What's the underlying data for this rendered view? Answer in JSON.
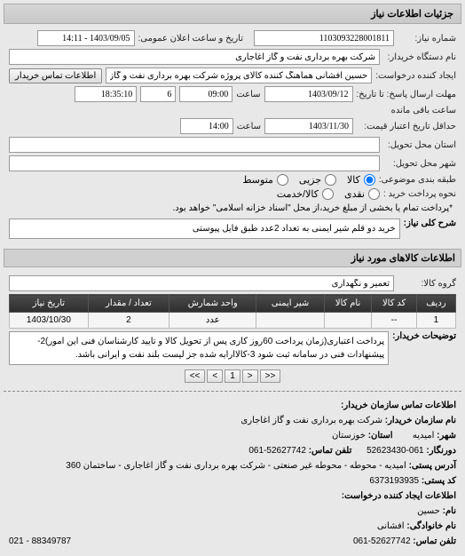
{
  "headers": {
    "main": "جزئیات اطلاعات نیاز",
    "goods": "اطلاعات کالاهای مورد نیاز",
    "contact": "اطلاعات تماس سازمان خریدار:"
  },
  "labels": {
    "req_no": "شماره نیاز:",
    "announce": "تاریخ و ساعت اعلان عمومی:",
    "buyer_org": "نام دستگاه خریدار:",
    "requester": "ایجاد کننده درخواست:",
    "btn_contact": "اطلاعات تماس خریدار",
    "until": "تا تاریخ:",
    "deadline": "مهلت ارسال پاسخ: تا تاریخ:",
    "credit": "حداقل تاریخ اعتبار قیمت:",
    "province": "استان محل تحویل:",
    "city": "شهر محل تحویل:",
    "packaging": "طبقه بندی موضوعی:",
    "payment": "نحوه پرداخت خرید :",
    "desc_main": "شرح کلی نیاز:",
    "goods_group": "گروه کالا:",
    "notes": "توضیحات خریدار:",
    "saat": "ساعت",
    "remain": "ساعت باقی مانده",
    "pay_cash": "نقدی",
    "pay_check": "کالا/خدمت",
    "b_org": "نام سازمان خریدار:",
    "b_city": "شهر:",
    "b_tel": "دورنگار:",
    "b_phone": "تلفن تماس:",
    "b_addr": "آدرس پستی:",
    "b_post": "کد پستی:",
    "b_req": "اطلاعات ایجاد کننده درخواست:",
    "b_name": "نام:",
    "b_family": "نام خانوادگی:",
    "b_tel2": "تلفن تماس:",
    "pkg_opt1": "کالا",
    "pkg_opt2": "جزیی",
    "pkg_opt3": "متوسط"
  },
  "values": {
    "req_no": "1103093228001811",
    "announce": "1403/09/05 - 14:11",
    "buyer_org": "شرکت بهره برداری نفت و گاز اغاجاری",
    "requester": "حسین افشانی هماهنگ کننده کالای پروژه شرکت بهره برداری نفت و گاز اغاجا",
    "deadline_date": "1403/09/12",
    "deadline_time": "09:00",
    "deadline_day": "6",
    "remain": "18:35:10",
    "credit_date": "1403/11/30",
    "credit_time": "14:00",
    "payment_note": "*پرداخت تمام یا بخشی از مبلغ خرید،از محل \"اسناد خزانه اسلامی\" خواهد بود.",
    "desc_main": "خرید دو قلم شیر ایمنی به تعداد 2عدد طبق فایل پیوستی",
    "goods_group": "تعمیر و نگهداری",
    "notes": "پرداخت اعتباری(زمان پرداخت 60روز کاری پس از تحویل کالا و تایید کارشناسان فنی این امور)2-پیشنهادات فنی در سامانه ثبت شود 3-کالاارایه شده جز لیست بلند نفت و ایرانی باشد."
  },
  "table": {
    "cols": [
      "ردیف",
      "کد کالا",
      "نام کالا",
      "شیر ایمنی",
      "واحد شمارش",
      "تعداد / مقدار",
      "تاریخ نیاز"
    ],
    "row": [
      "1",
      "--",
      "",
      "",
      "عدد",
      "2",
      "1403/10/30"
    ]
  },
  "pagination": [
    "<<",
    "<",
    "1",
    ">",
    ">>"
  ],
  "contact": {
    "org": "شرکت بهره برداری نفت و گاز اغاجاری",
    "city": "امیدیه",
    "province_lbl": "استان:",
    "province": "خوزستان",
    "fax": "061-52623430",
    "phone": "52627742-061",
    "addr": "امیدیه - محوطه - محوطه غیر صنعتی - شرکت بهره برداری نفت و گاز اغاجاری - ساختمان 360",
    "post": "6373193935",
    "name": "حسین",
    "family": "افشانی",
    "tel2": "52627742-061",
    "footer_phone": "021 - 88349787"
  }
}
